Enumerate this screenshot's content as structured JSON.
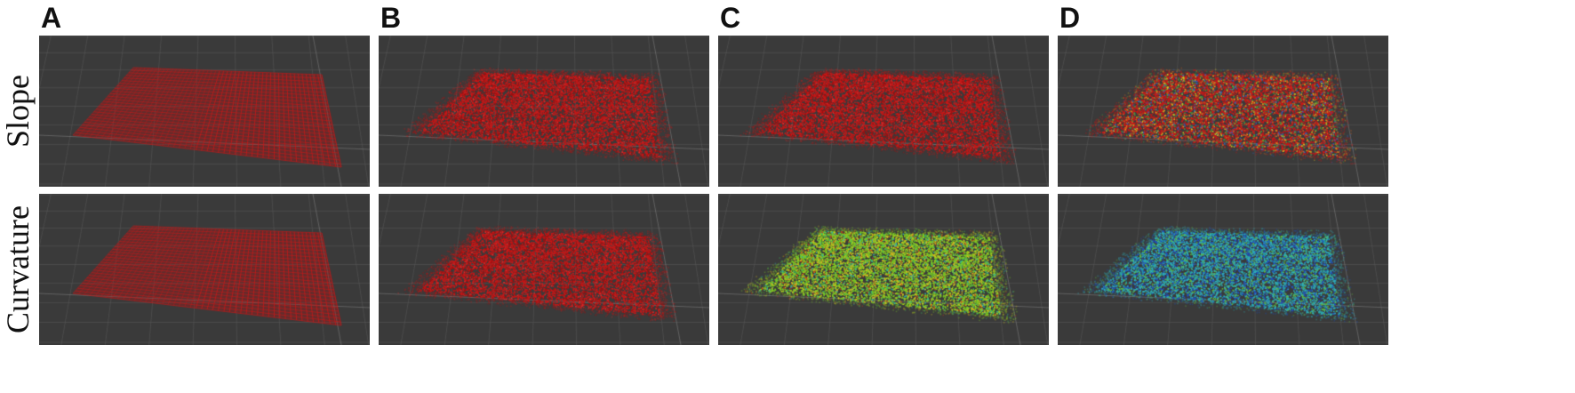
{
  "columns": [
    {
      "label": "A",
      "style": "grid"
    },
    {
      "label": "B",
      "style": "noisy-red"
    },
    {
      "label": "C",
      "style": "noisy-red-green"
    },
    {
      "label": "D",
      "style": "noisy-mixed"
    }
  ],
  "rows": [
    {
      "label": "Slope"
    },
    {
      "label": "Curvature"
    }
  ],
  "panels": [
    [
      "red-grid",
      "red-speckle",
      "red-speckle",
      "red-multicolor-speckle"
    ],
    [
      "red-grid",
      "red-speckle",
      "green-yellow-speckle",
      "blue-cyan-speckle"
    ]
  ],
  "colors": {
    "background": "#3a3a3a",
    "gridline": "#5a5a5a",
    "red": "#c81818",
    "green": "#7ccc22",
    "yellow": "#d8c020",
    "cyan": "#30b0b8",
    "blue": "#2050c0"
  }
}
